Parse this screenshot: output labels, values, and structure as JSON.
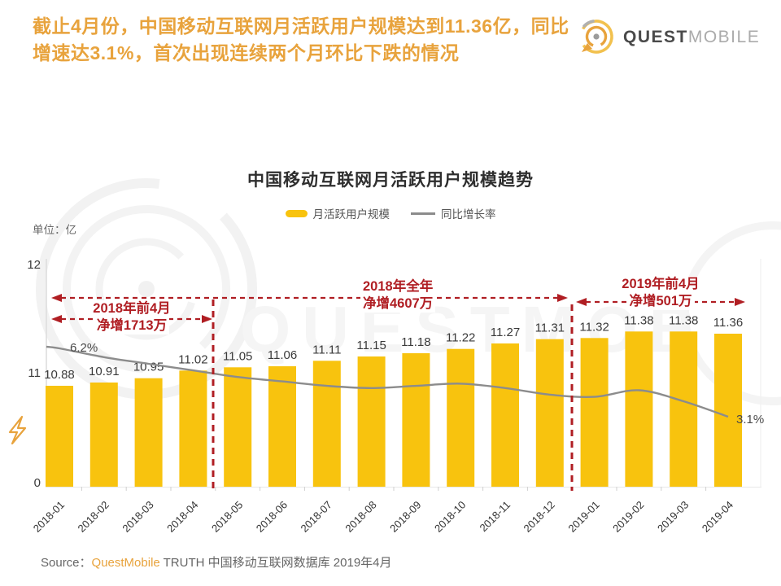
{
  "header": {
    "headline_line1": "截止4月份，中国移动互联网月活跃用户规模达到11.36亿，同比",
    "headline_line2": "增速达3.1%，首次出现连续两个月环比下跌的情况",
    "logo": {
      "brand_bold": "QUEST",
      "brand_light": "MOBILE"
    }
  },
  "chart": {
    "title": "中国移动互联网月活跃用户规模趋势",
    "unit_label": "单位：亿",
    "legend": [
      {
        "label": "月活跃用户规模",
        "swatch": "bar",
        "color": "#F8C30E"
      },
      {
        "label": "同比增长率",
        "swatch": "line",
        "color": "#8C8C8C"
      }
    ],
    "y_ticks": [
      "12",
      "11",
      "0"
    ],
    "annotations": [
      {
        "line1": "2018年前4月",
        "line2": "净增1713万",
        "range": "2018-01 ~ 2018-04"
      },
      {
        "line1": "2018年全年",
        "line2": "净增4607万",
        "range": "2018-01 ~ 2018-12"
      },
      {
        "line1": "2019年前4月",
        "line2": "净增501万",
        "range": "2019-01 ~ 2019-04"
      }
    ],
    "line_start_label": "6.2%",
    "line_end_label": "3.1%"
  },
  "chart_data": {
    "type": "bar",
    "title": "中国移动互联网月活跃用户规模趋势",
    "categories": [
      "2018-01",
      "2018-02",
      "2018-03",
      "2018-04",
      "2018-05",
      "2018-06",
      "2018-07",
      "2018-08",
      "2018-09",
      "2018-10",
      "2018-11",
      "2018-12",
      "2019-01",
      "2019-02",
      "2019-03",
      "2019-04"
    ],
    "series": [
      {
        "name": "月活跃用户规模",
        "type": "bar",
        "unit": "亿",
        "color": "#F8C30E",
        "values": [
          10.88,
          10.91,
          10.95,
          11.02,
          11.05,
          11.06,
          11.11,
          11.15,
          11.18,
          11.22,
          11.27,
          11.31,
          11.32,
          11.38,
          11.38,
          11.36
        ]
      },
      {
        "name": "同比增长率",
        "type": "line",
        "unit": "%",
        "color": "#8C8C8C",
        "labeled_values": {
          "2018-01": 6.2,
          "2019-04": 3.1
        },
        "values_estimated": [
          6.2,
          5.8,
          5.5,
          5.2,
          4.9,
          4.7,
          4.5,
          4.4,
          4.5,
          4.6,
          4.4,
          4.1,
          4.0,
          4.3,
          3.8,
          3.1
        ]
      }
    ],
    "left_axis": {
      "label": "单位：亿",
      "ticks": [
        0,
        11,
        12
      ],
      "broken_axis": true
    },
    "legend_position": "top-center",
    "grid": false
  },
  "source": {
    "prefix": "Source：",
    "brand": "QuestMobile",
    "rest": " TRUTH 中国移动互联网数据库 2019年4月"
  },
  "colors": {
    "bar": "#F8C30E",
    "line": "#8C8C8C",
    "headline": "#E8A33D",
    "annotation_red": "#B01E23",
    "title_text": "#2E2E2E"
  }
}
